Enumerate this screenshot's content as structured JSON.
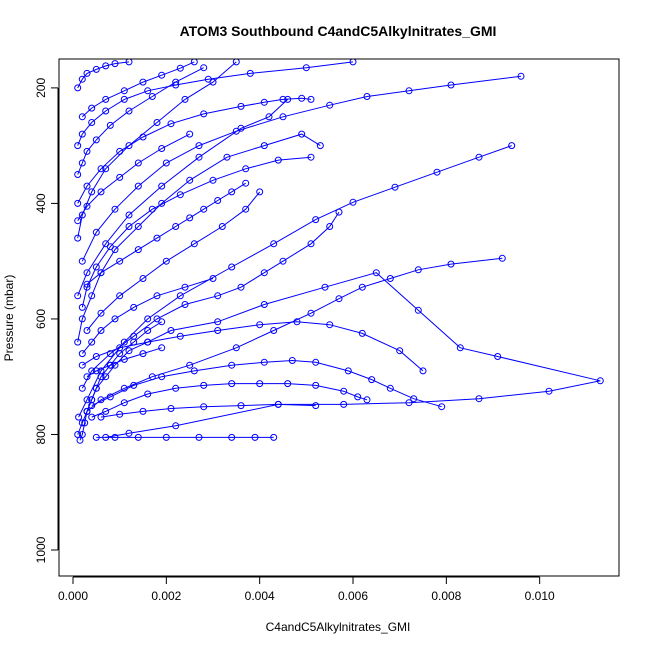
{
  "chart_data": {
    "type": "line",
    "title": "ATOM3 Southbound C4andC5Alkylnitrates_GMI",
    "xlabel": "C4andC5Alkylnitrates_GMI",
    "ylabel": "Pressure (mbar)",
    "xlim": [
      -0.0003,
      0.0117
    ],
    "ylim": [
      1045,
      150
    ],
    "y_inverted": true,
    "grid": false,
    "legend": "none",
    "x_ticks": [
      {
        "value": 0.0,
        "label": "0.000"
      },
      {
        "value": 0.002,
        "label": "0.002"
      },
      {
        "value": 0.004,
        "label": "0.004"
      },
      {
        "value": 0.006,
        "label": "0.006"
      },
      {
        "value": 0.008,
        "label": "0.008"
      },
      {
        "value": 0.01,
        "label": "0.010"
      }
    ],
    "y_ticks": [
      {
        "value": 200,
        "label": "200"
      },
      {
        "value": 400,
        "label": "400"
      },
      {
        "value": 600,
        "label": "600"
      },
      {
        "value": 800,
        "label": "800"
      },
      {
        "value": 1000,
        "label": "1000"
      }
    ],
    "series_color": "#0000ff",
    "series": [
      {
        "x": [
          0.00015,
          0.0002,
          0.00025,
          0.0003,
          0.0004,
          0.0005,
          0.0007,
          0.0009,
          0.0012,
          0.0016,
          0.0021,
          0.0031,
          0.0041,
          0.0054,
          0.0065,
          0.0074,
          0.0083,
          0.0091,
          0.0113,
          0.0102,
          0.0087,
          0.0072,
          0.0058,
          0.0044,
          0.0022,
          0.0012,
          0.0007
        ],
        "y": [
          810,
          800,
          780,
          760,
          740,
          720,
          700,
          680,
          655,
          640,
          620,
          605,
          575,
          545,
          520,
          585,
          650,
          665,
          707,
          725,
          738,
          745,
          748,
          748,
          785,
          798,
          805
        ]
      },
      {
        "x": [
          0.00012,
          0.0003,
          0.0006,
          0.0011,
          0.0016,
          0.0023,
          0.0034,
          0.0043,
          0.0052,
          0.006,
          0.0069,
          0.0078,
          0.0087,
          0.0094
        ],
        "y": [
          770,
          740,
          690,
          640,
          600,
          560,
          510,
          470,
          428,
          398,
          372,
          346,
          320,
          300
        ]
      },
      {
        "x": [
          0.0002,
          0.0004,
          0.0008,
          0.0013,
          0.0018,
          0.0024,
          0.0031,
          0.0036,
          0.0041,
          0.0045,
          0.0051,
          0.0055,
          0.0057
        ],
        "y": [
          720,
          690,
          660,
          630,
          600,
          575,
          560,
          545,
          520,
          500,
          470,
          440,
          415
        ]
      },
      {
        "x": [
          0.0001,
          0.0002,
          0.0004,
          0.0006,
          0.0009,
          0.0014,
          0.0019,
          0.0025,
          0.0033,
          0.0041,
          0.0049,
          0.0053
        ],
        "y": [
          640,
          600,
          560,
          520,
          480,
          440,
          400,
          360,
          320,
          300,
          280,
          300
        ]
      },
      {
        "x": [
          0.0001,
          0.0003,
          0.0007,
          0.0012,
          0.0019,
          0.0027,
          0.0036,
          0.0042,
          0.0046
        ],
        "y": [
          560,
          520,
          470,
          420,
          370,
          320,
          270,
          250,
          220
        ]
      },
      {
        "x": [
          0.0002,
          0.0005,
          0.0009,
          0.0014,
          0.002,
          0.0027,
          0.0035,
          0.0045,
          0.0055,
          0.0063,
          0.0072,
          0.0081,
          0.0096
        ],
        "y": [
          500,
          450,
          410,
          370,
          330,
          300,
          275,
          250,
          230,
          215,
          205,
          195,
          180
        ]
      },
      {
        "x": [
          0.0001,
          0.0002,
          0.0004,
          0.0007,
          0.0012,
          0.0018,
          0.0024,
          0.003,
          0.0035
        ],
        "y": [
          460,
          420,
          380,
          340,
          300,
          260,
          220,
          190,
          155
        ]
      },
      {
        "x": [
          0.0003,
          0.0006,
          0.0011,
          0.0017,
          0.0025,
          0.0035,
          0.0043,
          0.0051,
          0.0057,
          0.0062,
          0.0068,
          0.0074,
          0.0081,
          0.0092
        ],
        "y": [
          760,
          740,
          720,
          700,
          680,
          650,
          620,
          590,
          565,
          545,
          530,
          515,
          505,
          495
        ]
      },
      {
        "x": [
          0.0002,
          0.0005,
          0.001,
          0.0016,
          0.0023,
          0.0031,
          0.004,
          0.0048,
          0.0055,
          0.0062,
          0.007,
          0.0075
        ],
        "y": [
          680,
          665,
          650,
          640,
          630,
          620,
          610,
          605,
          610,
          625,
          655,
          690
        ]
      },
      {
        "x": [
          0.0004,
          0.0008,
          0.0013,
          0.0019,
          0.0026,
          0.0034,
          0.0041,
          0.0047,
          0.0052,
          0.0059,
          0.0064,
          0.0068,
          0.0073,
          0.0079
        ],
        "y": [
          750,
          735,
          715,
          700,
          690,
          680,
          675,
          672,
          675,
          690,
          705,
          720,
          738,
          752
        ]
      },
      {
        "x": [
          0.0001,
          0.0003,
          0.0006,
          0.001,
          0.0015,
          0.0021,
          0.0028,
          0.0036,
          0.0041,
          0.0045,
          0.0049,
          0.0051
        ],
        "y": [
          400,
          370,
          340,
          310,
          285,
          262,
          245,
          232,
          225,
          220,
          218,
          220
        ]
      },
      {
        "x": [
          0.0001,
          0.0002,
          0.0004,
          0.0007,
          0.0011,
          0.0016,
          0.0022,
          0.0029,
          0.0038,
          0.005,
          0.006
        ],
        "y": [
          300,
          280,
          260,
          240,
          220,
          205,
          195,
          185,
          175,
          165,
          155
        ]
      },
      {
        "x": [
          0.0002,
          0.0003,
          0.0005,
          0.0008,
          0.0012,
          0.0017,
          0.0023,
          0.003,
          0.0037,
          0.0044,
          0.0051
        ],
        "y": [
          580,
          545,
          510,
          475,
          440,
          410,
          385,
          360,
          340,
          325,
          320
        ]
      },
      {
        "x": [
          0.0001,
          0.0002,
          0.0003,
          0.0005,
          0.0008,
          0.0012,
          0.0017,
          0.0022,
          0.0028
        ],
        "y": [
          350,
          330,
          310,
          290,
          265,
          240,
          215,
          190,
          165
        ]
      },
      {
        "x": [
          0.0003,
          0.0006,
          0.001,
          0.0015,
          0.002,
          0.0026,
          0.0032,
          0.0037,
          0.004
        ],
        "y": [
          620,
          590,
          560,
          530,
          500,
          470,
          440,
          410,
          380
        ]
      },
      {
        "x": [
          0.0002,
          0.0004,
          0.0007,
          0.0011,
          0.0015,
          0.0019,
          0.0023,
          0.0026
        ],
        "y": [
          250,
          235,
          220,
          205,
          190,
          178,
          166,
          155
        ]
      },
      {
        "x": [
          0.0001,
          0.0002,
          0.0003,
          0.0004,
          0.0005,
          0.0006,
          0.0008,
          0.001,
          0.0013,
          0.0016,
          0.0019
        ],
        "y": [
          800,
          780,
          760,
          740,
          720,
          700,
          680,
          660,
          640,
          620,
          605
        ]
      },
      {
        "x": [
          0.0003,
          0.0006,
          0.001,
          0.0014,
          0.0018,
          0.0022,
          0.0025,
          0.0028,
          0.0031,
          0.0034,
          0.0037
        ],
        "y": [
          540,
          520,
          500,
          480,
          460,
          440,
          425,
          410,
          395,
          380,
          365
        ]
      },
      {
        "x": [
          0.0005,
          0.0009,
          0.0014,
          0.002,
          0.0027,
          0.0034,
          0.0039,
          0.0043
        ],
        "y": [
          805,
          805,
          805,
          805,
          805,
          805,
          805,
          805
        ]
      },
      {
        "x": [
          0.0004,
          0.0007,
          0.0011,
          0.0016,
          0.0022,
          0.0028,
          0.0034,
          0.004,
          0.0046,
          0.0052,
          0.0058,
          0.0061,
          0.0063
        ],
        "y": [
          770,
          760,
          745,
          730,
          720,
          715,
          712,
          712,
          712,
          715,
          725,
          735,
          740
        ]
      },
      {
        "x": [
          0.0001,
          0.0003,
          0.0006,
          0.001,
          0.0014,
          0.0019,
          0.0025
        ],
        "y": [
          430,
          405,
          380,
          355,
          330,
          305,
          280
        ]
      },
      {
        "x": [
          0.0002,
          0.0004,
          0.0006,
          0.0009,
          0.0013,
          0.0018,
          0.0024,
          0.003
        ],
        "y": [
          660,
          640,
          620,
          600,
          580,
          560,
          545,
          530
        ]
      },
      {
        "x": [
          0.0003,
          0.0005,
          0.0008,
          0.0011,
          0.0015,
          0.0019
        ],
        "y": [
          700,
          690,
          680,
          670,
          660,
          650
        ]
      },
      {
        "x": [
          0.0001,
          0.0002,
          0.0003,
          0.0005,
          0.0007,
          0.0009,
          0.0012
        ],
        "y": [
          200,
          185,
          175,
          168,
          162,
          158,
          155
        ]
      },
      {
        "x": [
          0.0006,
          0.001,
          0.0015,
          0.0021,
          0.0028,
          0.0036,
          0.0044,
          0.0052
        ],
        "y": [
          770,
          765,
          760,
          755,
          752,
          750,
          748,
          750
        ]
      }
    ]
  }
}
